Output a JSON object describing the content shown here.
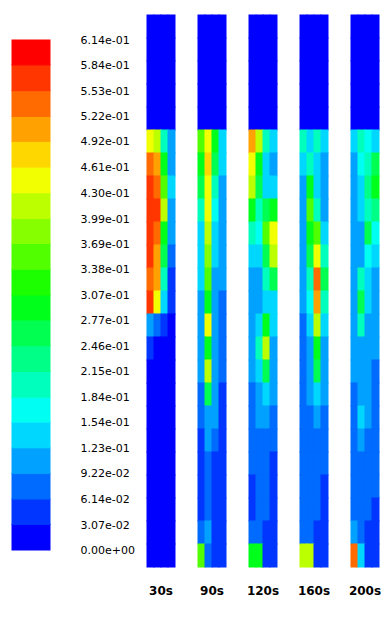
{
  "chart_data": {
    "type": "heatmap",
    "tick_labels": false,
    "panels": [
      {
        "title": "30s",
        "cells": [
          [
            0,
            0,
            0,
            0
          ],
          [
            0,
            0,
            0,
            0
          ],
          [
            0,
            0,
            0,
            0
          ],
          [
            0,
            0,
            0,
            0
          ],
          [
            0,
            0,
            0,
            0
          ],
          [
            0.45,
            0.4,
            0.2,
            0.1
          ],
          [
            0.55,
            0.5,
            0.3,
            0.12
          ],
          [
            0.58,
            0.55,
            0.35,
            0.15
          ],
          [
            0.58,
            0.56,
            0.4,
            0.12
          ],
          [
            0.57,
            0.55,
            0.3,
            0.1
          ],
          [
            0.56,
            0.52,
            0.25,
            0.08
          ],
          [
            0.55,
            0.5,
            0.2,
            0.06
          ],
          [
            0.58,
            0.45,
            0.15,
            0.05
          ],
          [
            0.1,
            0.08,
            0.05,
            0.03
          ],
          [
            0.04,
            0.03,
            0.03,
            0.02
          ],
          [
            0.03,
            0.03,
            0.02,
            0.02
          ],
          [
            0.03,
            0.02,
            0.02,
            0.02
          ],
          [
            0.03,
            0.02,
            0.02,
            0.02
          ],
          [
            0.02,
            0.02,
            0.02,
            0.02
          ],
          [
            0.02,
            0.02,
            0.02,
            0.02
          ],
          [
            0.02,
            0.02,
            0.02,
            0.02
          ],
          [
            0.02,
            0.02,
            0.02,
            0.02
          ],
          [
            0.02,
            0.02,
            0.02,
            0.02
          ],
          [
            0.02,
            0.02,
            0.02,
            0.02
          ]
        ]
      },
      {
        "title": "90s",
        "cells": [
          [
            0,
            0,
            0,
            0
          ],
          [
            0,
            0,
            0,
            0
          ],
          [
            0,
            0,
            0,
            0
          ],
          [
            0,
            0,
            0,
            0
          ],
          [
            0,
            0,
            0,
            0
          ],
          [
            0.35,
            0.45,
            0.3,
            0.15
          ],
          [
            0.3,
            0.47,
            0.25,
            0.14
          ],
          [
            0.25,
            0.45,
            0.2,
            0.12
          ],
          [
            0.2,
            0.43,
            0.18,
            0.12
          ],
          [
            0.15,
            0.4,
            0.15,
            0.1
          ],
          [
            0.15,
            0.38,
            0.15,
            0.1
          ],
          [
            0.14,
            0.35,
            0.12,
            0.1
          ],
          [
            0.12,
            0.3,
            0.12,
            0.08
          ],
          [
            0.12,
            0.45,
            0.1,
            0.08
          ],
          [
            0.1,
            0.3,
            0.1,
            0.08
          ],
          [
            0.1,
            0.4,
            0.12,
            0.08
          ],
          [
            0.08,
            0.25,
            0.1,
            0.06
          ],
          [
            0.08,
            0.12,
            0.1,
            0.06
          ],
          [
            0.06,
            0.1,
            0.08,
            0.05
          ],
          [
            0.06,
            0.08,
            0.06,
            0.05
          ],
          [
            0.06,
            0.07,
            0.06,
            0.05
          ],
          [
            0.06,
            0.07,
            0.06,
            0.05
          ],
          [
            0.08,
            0.1,
            0.06,
            0.05
          ],
          [
            0.35,
            0.08,
            0.05,
            0.04
          ]
        ]
      },
      {
        "title": "120s",
        "cells": [
          [
            0,
            0,
            0,
            0
          ],
          [
            0,
            0,
            0,
            0
          ],
          [
            0,
            0,
            0,
            0
          ],
          [
            0,
            0,
            0,
            0
          ],
          [
            0,
            0,
            0,
            0
          ],
          [
            0.5,
            0.4,
            0.2,
            0.15
          ],
          [
            0.45,
            0.3,
            0.15,
            0.12
          ],
          [
            0.4,
            0.25,
            0.15,
            0.15
          ],
          [
            0.3,
            0.2,
            0.25,
            0.3
          ],
          [
            0.2,
            0.18,
            0.35,
            0.45
          ],
          [
            0.15,
            0.15,
            0.25,
            0.4
          ],
          [
            0.12,
            0.12,
            0.2,
            0.25
          ],
          [
            0.12,
            0.12,
            0.15,
            0.15
          ],
          [
            0.12,
            0.15,
            0.3,
            0.15
          ],
          [
            0.1,
            0.2,
            0.4,
            0.12
          ],
          [
            0.1,
            0.15,
            0.25,
            0.1
          ],
          [
            0.08,
            0.12,
            0.15,
            0.1
          ],
          [
            0.08,
            0.1,
            0.1,
            0.08
          ],
          [
            0.07,
            0.09,
            0.08,
            0.07
          ],
          [
            0.07,
            0.08,
            0.08,
            0.06
          ],
          [
            0.06,
            0.08,
            0.07,
            0.06
          ],
          [
            0.06,
            0.07,
            0.07,
            0.06
          ],
          [
            0.08,
            0.08,
            0.06,
            0.05
          ],
          [
            0.3,
            0.3,
            0.06,
            0.05
          ]
        ]
      },
      {
        "title": "160s",
        "cells": [
          [
            0,
            0,
            0,
            0
          ],
          [
            0,
            0,
            0,
            0
          ],
          [
            0,
            0,
            0,
            0
          ],
          [
            0,
            0,
            0,
            0
          ],
          [
            0,
            0,
            0,
            0
          ],
          [
            0.2,
            0.15,
            0.2,
            0.15
          ],
          [
            0.15,
            0.2,
            0.15,
            0.1
          ],
          [
            0.12,
            0.3,
            0.15,
            0.1
          ],
          [
            0.1,
            0.35,
            0.2,
            0.12
          ],
          [
            0.1,
            0.3,
            0.35,
            0.15
          ],
          [
            0.1,
            0.25,
            0.45,
            0.2
          ],
          [
            0.1,
            0.2,
            0.55,
            0.25
          ],
          [
            0.1,
            0.18,
            0.5,
            0.2
          ],
          [
            0.08,
            0.15,
            0.4,
            0.15
          ],
          [
            0.08,
            0.12,
            0.3,
            0.12
          ],
          [
            0.08,
            0.1,
            0.25,
            0.1
          ],
          [
            0.08,
            0.1,
            0.15,
            0.1
          ],
          [
            0.07,
            0.09,
            0.1,
            0.08
          ],
          [
            0.07,
            0.08,
            0.08,
            0.07
          ],
          [
            0.07,
            0.08,
            0.08,
            0.07
          ],
          [
            0.07,
            0.07,
            0.07,
            0.06
          ],
          [
            0.07,
            0.07,
            0.07,
            0.06
          ],
          [
            0.08,
            0.08,
            0.06,
            0.05
          ],
          [
            0.4,
            0.4,
            0.06,
            0.05
          ]
        ]
      },
      {
        "title": "200s",
        "cells": [
          [
            0,
            0,
            0,
            0
          ],
          [
            0,
            0,
            0,
            0
          ],
          [
            0,
            0,
            0,
            0
          ],
          [
            0,
            0,
            0,
            0
          ],
          [
            0,
            0,
            0,
            0
          ],
          [
            0.15,
            0.2,
            0.18,
            0.15
          ],
          [
            0.12,
            0.18,
            0.2,
            0.25
          ],
          [
            0.12,
            0.15,
            0.22,
            0.28
          ],
          [
            0.1,
            0.15,
            0.2,
            0.22
          ],
          [
            0.1,
            0.12,
            0.25,
            0.18
          ],
          [
            0.1,
            0.12,
            0.18,
            0.15
          ],
          [
            0.1,
            0.2,
            0.15,
            0.12
          ],
          [
            0.1,
            0.25,
            0.15,
            0.12
          ],
          [
            0.1,
            0.2,
            0.12,
            0.1
          ],
          [
            0.1,
            0.12,
            0.1,
            0.1
          ],
          [
            0.1,
            0.1,
            0.1,
            0.09
          ],
          [
            0.09,
            0.1,
            0.1,
            0.09
          ],
          [
            0.08,
            0.15,
            0.1,
            0.08
          ],
          [
            0.08,
            0.1,
            0.08,
            0.08
          ],
          [
            0.08,
            0.09,
            0.08,
            0.07
          ],
          [
            0.08,
            0.08,
            0.08,
            0.07
          ],
          [
            0.08,
            0.08,
            0.07,
            0.06
          ],
          [
            0.1,
            0.08,
            0.06,
            0.05
          ],
          [
            0.55,
            0.15,
            0.06,
            0.05
          ]
        ]
      }
    ],
    "colorbar": {
      "range": [
        0,
        0.614
      ],
      "ticks": [
        {
          "value": 0,
          "label": "0.00e+00"
        },
        {
          "value": 0.0307,
          "label": "3.07e-02"
        },
        {
          "value": 0.0614,
          "label": "6.14e-02"
        },
        {
          "value": 0.0922,
          "label": "9.22e-02"
        },
        {
          "value": 0.123,
          "label": "1.23e-01"
        },
        {
          "value": 0.154,
          "label": "1.54e-01"
        },
        {
          "value": 0.184,
          "label": "1.84e-01"
        },
        {
          "value": 0.215,
          "label": "2.15e-01"
        },
        {
          "value": 0.246,
          "label": "2.46e-01"
        },
        {
          "value": 0.277,
          "label": "2.77e-01"
        },
        {
          "value": 0.307,
          "label": "3.07e-01"
        },
        {
          "value": 0.338,
          "label": "3.38e-01"
        },
        {
          "value": 0.369,
          "label": "3.69e-01"
        },
        {
          "value": 0.399,
          "label": "3.99e-01"
        },
        {
          "value": 0.43,
          "label": "4.30e-01"
        },
        {
          "value": 0.461,
          "label": "4.61e-01"
        },
        {
          "value": 0.492,
          "label": "4.92e-01"
        },
        {
          "value": 0.522,
          "label": "5.22e-01"
        },
        {
          "value": 0.553,
          "label": "5.53e-01"
        },
        {
          "value": 0.584,
          "label": "5.84e-01"
        },
        {
          "value": 0.614,
          "label": "6.14e-01"
        }
      ]
    }
  }
}
